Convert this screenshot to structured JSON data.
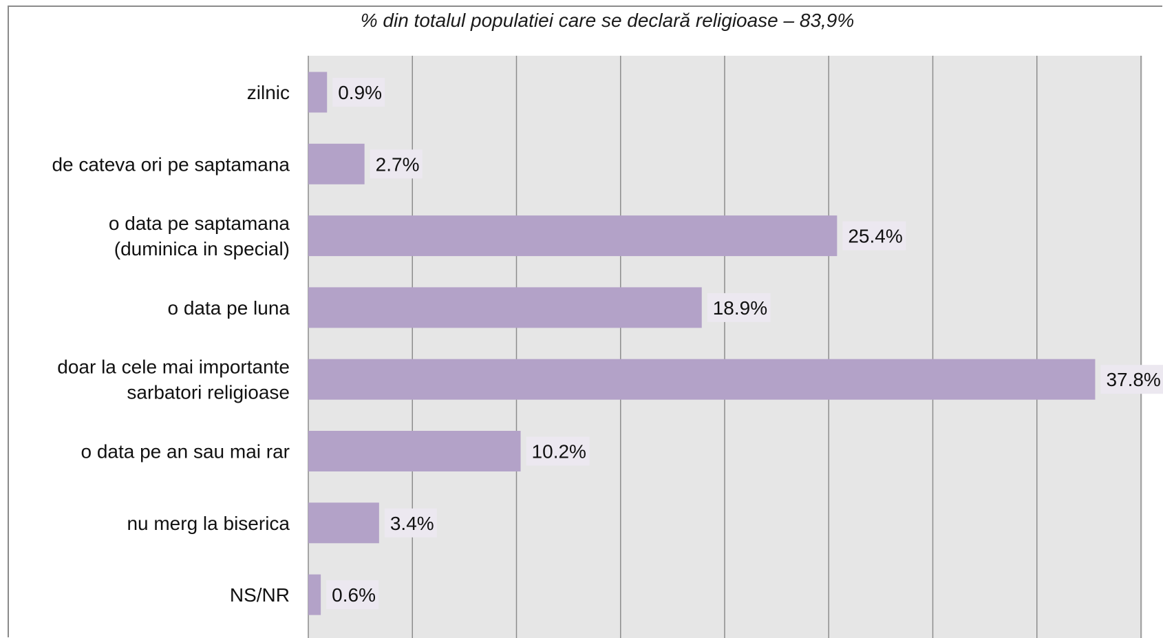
{
  "chart_data": {
    "type": "bar",
    "orientation": "horizontal",
    "title": "% din totalul populatiei care se declară religioase – 83,9%",
    "categories": [
      [
        "zilnic"
      ],
      [
        "de cateva ori pe saptamana"
      ],
      [
        "o data pe saptamana",
        "(duminica in special)"
      ],
      [
        "o data pe luna"
      ],
      [
        "doar la cele mai importante",
        "sarbatori religioase"
      ],
      [
        "o data pe an sau mai rar"
      ],
      [
        "nu merg la biserica"
      ],
      [
        "NS/NR"
      ]
    ],
    "values": [
      0.9,
      2.7,
      25.4,
      18.9,
      37.8,
      10.2,
      3.4,
      0.6
    ],
    "value_labels": [
      "0.9%",
      "2.7%",
      "25.4%",
      "18.9%",
      "37.8%",
      "10.2%",
      "3.4%",
      "0.6%"
    ],
    "xlim": [
      0,
      40
    ],
    "grid": "vertical",
    "colors": {
      "bar": "#b3a2c8",
      "plot_background": "#e6e6e6",
      "gridline": "#8c8c8c",
      "label_background": "#ece8f0"
    }
  }
}
